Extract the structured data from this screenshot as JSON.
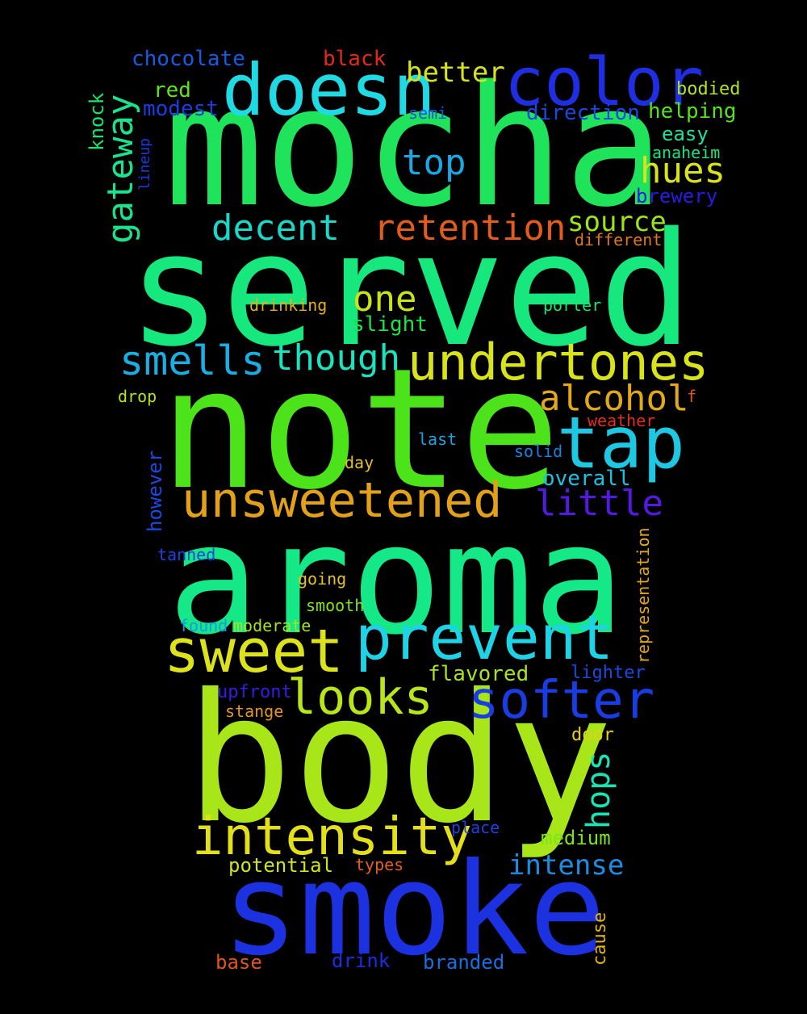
{
  "cloud": {
    "background": "#000000",
    "words": [
      {
        "text": "mocha",
        "color": "#1fe35a"
      },
      {
        "text": "served",
        "color": "#17e87e"
      },
      {
        "text": "note",
        "color": "#4de31a"
      },
      {
        "text": "aroma",
        "color": "#14e887"
      },
      {
        "text": "body",
        "color": "#a8e61a"
      },
      {
        "text": "smoke",
        "color": "#1c32e0"
      },
      {
        "text": "doesn",
        "color": "#1fd9e3"
      },
      {
        "text": "color",
        "color": "#1e2ee0"
      },
      {
        "text": "undertones",
        "color": "#d9e31a"
      },
      {
        "text": "tap",
        "color": "#1ec8e3"
      },
      {
        "text": "unsweetened",
        "color": "#e3a11a"
      },
      {
        "text": "prevent",
        "color": "#1ed3e6"
      },
      {
        "text": "sweet",
        "color": "#dce31a"
      },
      {
        "text": "intensity",
        "color": "#e3e01a"
      },
      {
        "text": "softer",
        "color": "#1a3de3"
      },
      {
        "text": "looks",
        "color": "#b9e61a"
      },
      {
        "text": "smells",
        "color": "#1aaee3"
      },
      {
        "text": "though",
        "color": "#1ae3c0"
      },
      {
        "text": "alcohol",
        "color": "#e3a81a"
      },
      {
        "text": "retention",
        "color": "#e35c1a"
      },
      {
        "text": "decent",
        "color": "#1ad8c8"
      },
      {
        "text": "hues",
        "color": "#d9e31a"
      },
      {
        "text": "top",
        "color": "#1aa8e3"
      },
      {
        "text": "one",
        "color": "#c8e31a"
      },
      {
        "text": "little",
        "color": "#541ae3"
      },
      {
        "text": "gateway",
        "color": "#1ae38e"
      },
      {
        "text": "better",
        "color": "#d6e31a"
      },
      {
        "text": "source",
        "color": "#9ce31a"
      },
      {
        "text": "intense",
        "color": "#1a8ee3"
      },
      {
        "text": "hops",
        "color": "#1ae3b4"
      },
      {
        "text": "chocolate",
        "color": "#1a5ae3"
      },
      {
        "text": "black",
        "color": "#e32a1a"
      },
      {
        "text": "red",
        "color": "#60e31a"
      },
      {
        "text": "modest",
        "color": "#1a3ce3"
      },
      {
        "text": "semi",
        "color": "#1a54e3"
      },
      {
        "text": "direction",
        "color": "#1a48e3"
      },
      {
        "text": "bodied",
        "color": "#b4e31a"
      },
      {
        "text": "helping",
        "color": "#54e31a"
      },
      {
        "text": "easy",
        "color": "#1ae3a0"
      },
      {
        "text": "anaheim",
        "color": "#1ae380"
      },
      {
        "text": "brewery",
        "color": "#2a1ae3"
      },
      {
        "text": "different",
        "color": "#e3781a"
      },
      {
        "text": "knock",
        "color": "#1ae36a"
      },
      {
        "text": "lineup",
        "color": "#1a3ae3"
      },
      {
        "text": "drinking",
        "color": "#e3b01a"
      },
      {
        "text": "slight",
        "color": "#1ae34a"
      },
      {
        "text": "porter",
        "color": "#1ae370"
      },
      {
        "text": "drop",
        "color": "#b4e31a"
      },
      {
        "text": "f",
        "color": "#e3561a"
      },
      {
        "text": "weather",
        "color": "#e32e1a"
      },
      {
        "text": "last",
        "color": "#1aa4e3"
      },
      {
        "text": "solid",
        "color": "#1a82e3"
      },
      {
        "text": "day",
        "color": "#e3c01a"
      },
      {
        "text": "overall",
        "color": "#1ac2e3"
      },
      {
        "text": "however",
        "color": "#1a4ae3"
      },
      {
        "text": "tanned",
        "color": "#1a42e3"
      },
      {
        "text": "representation",
        "color": "#e3a61a"
      },
      {
        "text": "going",
        "color": "#e3c41a"
      },
      {
        "text": "smooth",
        "color": "#84e31a"
      },
      {
        "text": "found",
        "color": "#1a9ae3"
      },
      {
        "text": "moderate",
        "color": "#a8e31a"
      },
      {
        "text": "flavored",
        "color": "#a8e31a"
      },
      {
        "text": "lighter",
        "color": "#1a4ae3"
      },
      {
        "text": "upfront",
        "color": "#3a1ae3"
      },
      {
        "text": "stange",
        "color": "#e3961a"
      },
      {
        "text": "door",
        "color": "#e3d01a"
      },
      {
        "text": "place",
        "color": "#1a42e3"
      },
      {
        "text": "medium",
        "color": "#7ee31a"
      },
      {
        "text": "potential",
        "color": "#d0e31a"
      },
      {
        "text": "types",
        "color": "#e3601a"
      },
      {
        "text": "cause",
        "color": "#e3b41a"
      },
      {
        "text": "base",
        "color": "#e3541a"
      },
      {
        "text": "drink",
        "color": "#1a2ee3"
      },
      {
        "text": "branded",
        "color": "#1a6ee3"
      }
    ]
  }
}
